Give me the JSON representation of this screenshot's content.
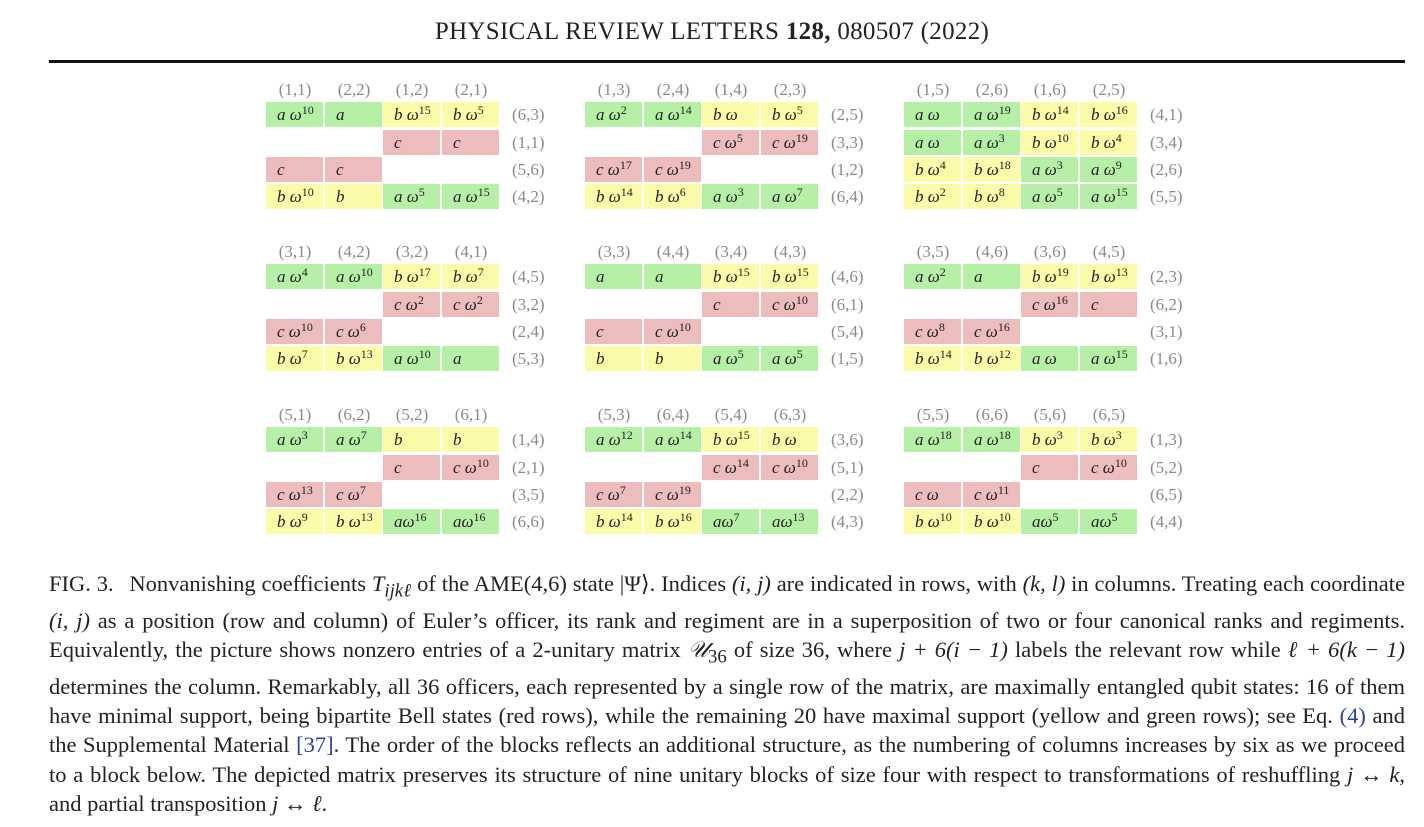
{
  "header": {
    "journal": "PHYSICAL REVIEW LETTERS",
    "volume": "128,",
    "pages": "080507 (2022)"
  },
  "blocks": [
    {
      "cols": [
        "(1,1)",
        "(2,2)",
        "(1,2)",
        "(2,1)"
      ],
      "rows": [
        {
          "label": "(6,3)",
          "cells": [
            [
              "g",
              "a ω",
              "10"
            ],
            [
              "g",
              "a",
              ""
            ],
            [
              "y",
              "b ω",
              "15"
            ],
            [
              "y",
              "b ω",
              "5"
            ]
          ]
        },
        {
          "label": "(1,1)",
          "cells": [
            null,
            null,
            [
              "r",
              "c",
              ""
            ],
            [
              "r",
              "c",
              ""
            ]
          ]
        },
        {
          "label": "(5,6)",
          "cells": [
            [
              "r",
              "c",
              ""
            ],
            [
              "r",
              "c",
              ""
            ],
            null,
            null
          ]
        },
        {
          "label": "(4,2)",
          "cells": [
            [
              "y",
              "b ω",
              "10"
            ],
            [
              "y",
              "b",
              ""
            ],
            [
              "g",
              "a ω",
              "5"
            ],
            [
              "g",
              "a ω",
              "15"
            ]
          ]
        }
      ]
    },
    {
      "cols": [
        "(1,3)",
        "(2,4)",
        "(1,4)",
        "(2,3)"
      ],
      "rows": [
        {
          "label": "(2,5)",
          "cells": [
            [
              "g",
              "a ω",
              "2"
            ],
            [
              "g",
              "a ω",
              "14"
            ],
            [
              "y",
              "b ω",
              ""
            ],
            [
              "y",
              "b ω",
              "5"
            ]
          ]
        },
        {
          "label": "(3,3)",
          "cells": [
            null,
            null,
            [
              "r",
              "c ω",
              "5"
            ],
            [
              "r",
              "c ω",
              "19"
            ]
          ]
        },
        {
          "label": "(1,2)",
          "cells": [
            [
              "r",
              "c ω",
              "17"
            ],
            [
              "r",
              "c ω",
              "19"
            ],
            null,
            null
          ]
        },
        {
          "label": "(6,4)",
          "cells": [
            [
              "y",
              "b ω",
              "14"
            ],
            [
              "y",
              "b ω",
              "6"
            ],
            [
              "g",
              "a ω",
              "3"
            ],
            [
              "g",
              "a ω",
              "7"
            ]
          ]
        }
      ]
    },
    {
      "cols": [
        "(1,5)",
        "(2,6)",
        "(1,6)",
        "(2,5)"
      ],
      "rows": [
        {
          "label": "(4,1)",
          "cells": [
            [
              "g",
              "a ω",
              ""
            ],
            [
              "g",
              "a ω",
              "19"
            ],
            [
              "y",
              "b ω",
              "14"
            ],
            [
              "y",
              "b ω",
              "16"
            ]
          ]
        },
        {
          "label": "(3,4)",
          "cells": [
            [
              "g",
              "a ω",
              ""
            ],
            [
              "g",
              "a ω",
              "3"
            ],
            [
              "y",
              "b ω",
              "10"
            ],
            [
              "y",
              "b ω",
              "4"
            ]
          ]
        },
        {
          "label": "(2,6)",
          "cells": [
            [
              "y",
              "b ω",
              "4"
            ],
            [
              "y",
              "b ω",
              "18"
            ],
            [
              "g",
              "a ω",
              "3"
            ],
            [
              "g",
              "a ω",
              "9"
            ]
          ]
        },
        {
          "label": "(5,5)",
          "cells": [
            [
              "y",
              "b ω",
              "2"
            ],
            [
              "y",
              "b ω",
              "8"
            ],
            [
              "g",
              "a ω",
              "5"
            ],
            [
              "g",
              "a ω",
              "15"
            ]
          ]
        }
      ]
    },
    {
      "cols": [
        "(3,1)",
        "(4,2)",
        "(3,2)",
        "(4,1)"
      ],
      "rows": [
        {
          "label": "(4,5)",
          "cells": [
            [
              "g",
              "a ω",
              "4"
            ],
            [
              "g",
              "a ω",
              "10"
            ],
            [
              "y",
              "b ω",
              "17"
            ],
            [
              "y",
              "b ω",
              "7"
            ]
          ]
        },
        {
          "label": "(3,2)",
          "cells": [
            null,
            null,
            [
              "r",
              "c ω",
              "2"
            ],
            [
              "r",
              "c ω",
              "2"
            ]
          ]
        },
        {
          "label": "(2,4)",
          "cells": [
            [
              "r",
              "c ω",
              "10"
            ],
            [
              "r",
              "c ω",
              "6"
            ],
            null,
            null
          ]
        },
        {
          "label": "(5,3)",
          "cells": [
            [
              "y",
              "b ω",
              "7"
            ],
            [
              "y",
              "b ω",
              "13"
            ],
            [
              "g",
              "a ω",
              "10"
            ],
            [
              "g",
              "a",
              ""
            ]
          ]
        }
      ]
    },
    {
      "cols": [
        "(3,3)",
        "(4,4)",
        "(3,4)",
        "(4,3)"
      ],
      "rows": [
        {
          "label": "(4,6)",
          "cells": [
            [
              "g",
              "a",
              ""
            ],
            [
              "g",
              "a",
              ""
            ],
            [
              "y",
              "b ω",
              "15"
            ],
            [
              "y",
              "b ω",
              "15"
            ]
          ]
        },
        {
          "label": "(6,1)",
          "cells": [
            null,
            null,
            [
              "r",
              "c",
              ""
            ],
            [
              "r",
              "c ω",
              "10"
            ]
          ]
        },
        {
          "label": "(5,4)",
          "cells": [
            [
              "r",
              "c",
              ""
            ],
            [
              "r",
              "c ω",
              "10"
            ],
            null,
            null
          ]
        },
        {
          "label": "(1,5)",
          "cells": [
            [
              "y",
              "b",
              ""
            ],
            [
              "y",
              "b",
              ""
            ],
            [
              "g",
              "a ω",
              "5"
            ],
            [
              "g",
              "a ω",
              "5"
            ]
          ]
        }
      ]
    },
    {
      "cols": [
        "(3,5)",
        "(4,6)",
        "(3,6)",
        "(4,5)"
      ],
      "rows": [
        {
          "label": "(2,3)",
          "cells": [
            [
              "g",
              "a ω",
              "2"
            ],
            [
              "g",
              "a",
              ""
            ],
            [
              "y",
              "b ω",
              "19"
            ],
            [
              "y",
              "b ω",
              "13"
            ]
          ]
        },
        {
          "label": "(6,2)",
          "cells": [
            null,
            null,
            [
              "r",
              "c ω",
              "16"
            ],
            [
              "r",
              "c",
              ""
            ]
          ]
        },
        {
          "label": "(3,1)",
          "cells": [
            [
              "r",
              "c ω",
              "8"
            ],
            [
              "r",
              "c ω",
              "16"
            ],
            null,
            null
          ]
        },
        {
          "label": "(1,6)",
          "cells": [
            [
              "y",
              "b ω",
              "14"
            ],
            [
              "y",
              "b ω",
              "12"
            ],
            [
              "g",
              "a ω",
              ""
            ],
            [
              "g",
              "a ω",
              "15"
            ]
          ]
        }
      ]
    },
    {
      "cols": [
        "(5,1)",
        "(6,2)",
        "(5,2)",
        "(6,1)"
      ],
      "rows": [
        {
          "label": "(1,4)",
          "cells": [
            [
              "g",
              "a ω",
              "3"
            ],
            [
              "g",
              "a ω",
              "7"
            ],
            [
              "y",
              "b",
              ""
            ],
            [
              "y",
              "b",
              ""
            ]
          ]
        },
        {
          "label": "(2,1)",
          "cells": [
            null,
            null,
            [
              "r",
              "c",
              ""
            ],
            [
              "r",
              "c ω",
              "10"
            ]
          ]
        },
        {
          "label": "(3,5)",
          "cells": [
            [
              "r",
              "c ω",
              "13"
            ],
            [
              "r",
              "c ω",
              "7"
            ],
            null,
            null
          ]
        },
        {
          "label": "(6,6)",
          "cells": [
            [
              "y",
              "b ω",
              "9"
            ],
            [
              "y",
              "b ω",
              "13"
            ],
            [
              "g",
              "aω",
              "16"
            ],
            [
              "g",
              "aω",
              "16"
            ]
          ]
        }
      ]
    },
    {
      "cols": [
        "(5,3)",
        "(6,4)",
        "(5,4)",
        "(6,3)"
      ],
      "rows": [
        {
          "label": "(3,6)",
          "cells": [
            [
              "g",
              "a ω",
              "12"
            ],
            [
              "g",
              "a ω",
              "14"
            ],
            [
              "y",
              "b ω",
              "15"
            ],
            [
              "y",
              "b ω",
              ""
            ]
          ]
        },
        {
          "label": "(5,1)",
          "cells": [
            null,
            null,
            [
              "r",
              "c ω",
              "14"
            ],
            [
              "r",
              "c ω",
              "10"
            ]
          ]
        },
        {
          "label": "(2,2)",
          "cells": [
            [
              "r",
              "c ω",
              "7"
            ],
            [
              "r",
              "c ω",
              "19"
            ],
            null,
            null
          ]
        },
        {
          "label": "(4,3)",
          "cells": [
            [
              "y",
              "b ω",
              "14"
            ],
            [
              "y",
              "b ω",
              "16"
            ],
            [
              "g",
              "aω",
              "7"
            ],
            [
              "g",
              "aω",
              "13"
            ]
          ]
        }
      ]
    },
    {
      "cols": [
        "(5,5)",
        "(6,6)",
        "(5,6)",
        "(6,5)"
      ],
      "rows": [
        {
          "label": "(1,3)",
          "cells": [
            [
              "g",
              "a ω",
              "18"
            ],
            [
              "g",
              "a ω",
              "18"
            ],
            [
              "y",
              "b ω",
              "3"
            ],
            [
              "y",
              "b ω",
              "3"
            ]
          ]
        },
        {
          "label": "(5,2)",
          "cells": [
            null,
            null,
            [
              "r",
              "c",
              ""
            ],
            [
              "r",
              "c ω",
              "10"
            ]
          ]
        },
        {
          "label": "(6,5)",
          "cells": [
            [
              "r",
              "c ω",
              ""
            ],
            [
              "r",
              "c ω",
              "11"
            ],
            null,
            null
          ]
        },
        {
          "label": "(4,4)",
          "cells": [
            [
              "y",
              "b ω",
              "10"
            ],
            [
              "y",
              "b ω",
              "10"
            ],
            [
              "g",
              "aω",
              "5"
            ],
            [
              "g",
              "aω",
              "5"
            ]
          ]
        }
      ]
    }
  ],
  "caption": {
    "lead": "FIG. 3.",
    "text_a": "Nonvanishing coefficients ",
    "T": "T",
    "T_sub": "ijkℓ",
    "text_b": " of the AME(4,6) state |Ψ⟩. Indices ",
    "ij": "(i, j)",
    "text_c": " are indicated in rows, with ",
    "kl": "(k, l)",
    "text_d": " in columns. Treating each coordinate ",
    "text_e": " as a position (row and column) of Euler’s officer, its rank and regiment are in a superposition of two or four canonical ranks and regiments. Equivalently, the picture shows nonzero entries of a 2-unitary matrix ",
    "U": "𝒰",
    "U_sub": "36",
    "text_f": " of size 36, where ",
    "expr1": "j + 6(i − 1)",
    "text_g": " labels the relevant row while ",
    "expr2": "ℓ + 6(k − 1)",
    "text_h": " determines the column. Remarkably, all 36 officers, each represented by a single row of the matrix, are maximally entangled qubit states: 16 of them have minimal support, being bipartite Bell states (red rows), while the remaining 20 have maximal support (yellow and green rows); see Eq. ",
    "eq_ref": "(4)",
    "text_i": " and the Supplemental Material ",
    "sm_ref": "[37]",
    "text_j": ". The order of the blocks reflects an additional structure, as the numbering of columns increases by six as we proceed to a block below. The depicted matrix preserves its structure of nine unitary blocks of size four with respect to transformations of reshuffling ",
    "jk": "j ↔ k",
    "text_k": ", and partial transposition ",
    "il": "j ↔ ℓ",
    "text_l": "."
  }
}
